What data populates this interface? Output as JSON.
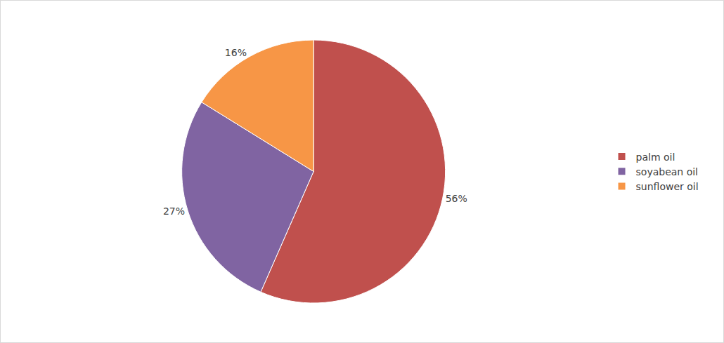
{
  "chart_data": {
    "type": "pie",
    "categories": [
      "palm oil",
      "soyabean oil",
      "sunflower oil"
    ],
    "values": [
      56,
      27,
      16
    ],
    "value_labels": [
      "56%",
      "27%",
      "16%"
    ],
    "colors": [
      "#c0504d",
      "#8064a2",
      "#f79646"
    ],
    "data_labels": true,
    "legend": "right"
  }
}
